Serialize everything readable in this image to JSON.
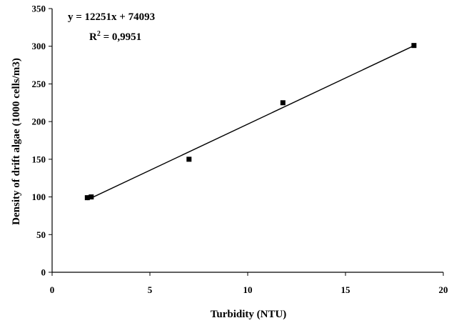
{
  "chart_data": {
    "type": "scatter",
    "xlabel": "Turbidity (NTU)",
    "ylabel": "Density of drift algae (1000 cells/m3)",
    "xlim": [
      0,
      20
    ],
    "ylim": [
      0,
      350
    ],
    "x_ticks": [
      0,
      5,
      10,
      15,
      20
    ],
    "y_ticks": [
      0,
      50,
      100,
      150,
      200,
      250,
      300,
      350
    ],
    "x_tick_labels": [
      "0",
      "5",
      "10",
      "15",
      "20"
    ],
    "y_tick_labels": [
      "0",
      "50",
      "100",
      "150",
      "200",
      "250",
      "300",
      "350"
    ],
    "grid": false,
    "legend": "none",
    "series": [
      {
        "points": [
          {
            "x": 1.8,
            "y": 99
          },
          {
            "x": 2.0,
            "y": 100
          },
          {
            "x": 7.0,
            "y": 150
          },
          {
            "x": 11.8,
            "y": 225
          },
          {
            "x": 18.5,
            "y": 301
          }
        ],
        "marker": "square",
        "color": "#000000"
      }
    ],
    "trendline": {
      "type": "linear",
      "slope": 12251,
      "intercept": 74093,
      "r2": 0.9951,
      "x_range": [
        1.8,
        18.5
      ],
      "equation_text": "y = 12251x + 74093",
      "r2_label": "R",
      "r2_superscript": "2",
      "r2_value_text": " = 0,9951"
    }
  }
}
